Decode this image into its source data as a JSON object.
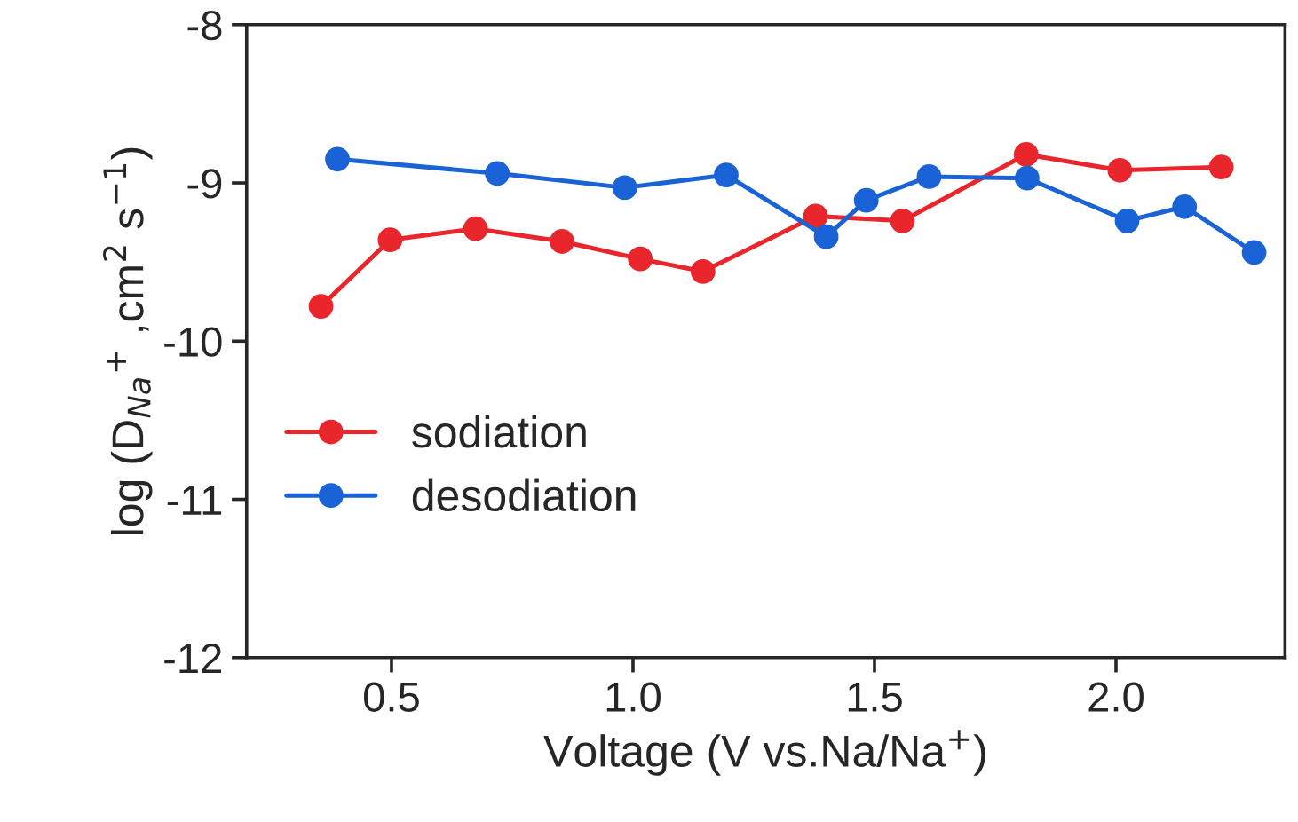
{
  "chart_data": {
    "type": "line",
    "xlabel": "Voltage (V vs.Na/Na$^{+}$)",
    "ylabel": "log (D$_{Na}$$^{+}$ ,cm$^{2}$ s$^{−1}$)",
    "xlim": [
      0.2,
      2.35
    ],
    "xticks": [
      {
        "value": 0.5,
        "label": "0.5"
      },
      {
        "value": 1.0,
        "label": "1.0"
      },
      {
        "value": 1.5,
        "label": "1.5"
      },
      {
        "value": 2.0,
        "label": "2.0"
      }
    ],
    "ylim": [
      -12,
      -8
    ],
    "yticks": [
      -12,
      -11,
      -10,
      -9,
      -8
    ],
    "grid": false,
    "legend": "left",
    "marker": "circle",
    "line_style": "solid",
    "series": [
      {
        "name": "sodiation",
        "color": "#e8262b",
        "x": [
          0.354,
          0.497,
          0.674,
          0.853,
          1.015,
          1.145,
          1.378,
          1.558,
          1.814,
          2.008,
          2.218
        ],
        "values": [
          -9.78,
          -9.36,
          -9.29,
          -9.37,
          -9.48,
          -9.56,
          -9.21,
          -9.24,
          -8.82,
          -8.92,
          -8.9
        ]
      },
      {
        "name": "desodiation",
        "color": "#1a63d6",
        "x": [
          0.388,
          0.719,
          0.983,
          1.193,
          1.4,
          1.483,
          1.613,
          1.816,
          2.023,
          2.142,
          2.286
        ],
        "values": [
          -8.85,
          -8.94,
          -9.03,
          -8.95,
          -9.34,
          -9.11,
          -8.96,
          -8.97,
          -9.24,
          -9.15,
          -9.44
        ]
      }
    ]
  }
}
